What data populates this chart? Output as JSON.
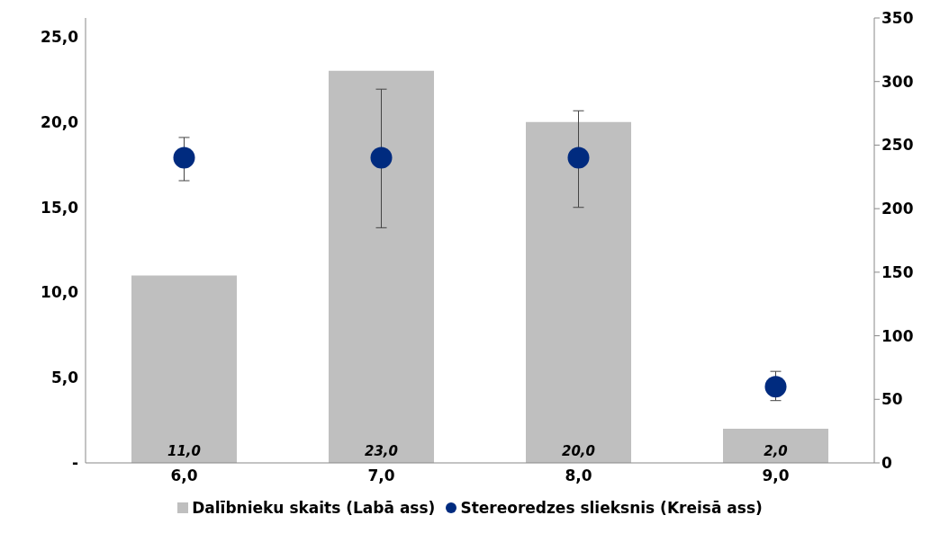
{
  "chart_data": {
    "type": "bar",
    "categories": [
      "6,0",
      "7,0",
      "8,0",
      "9,0"
    ],
    "series": [
      {
        "name": "Dalībnieku skaits (Labā ass)",
        "color": "#bfbfbf",
        "values": [
          11,
          23,
          20,
          2
        ],
        "value_labels": [
          "11,0",
          "23,0",
          "20,0",
          "2,0"
        ]
      },
      {
        "name": "Stereoredzes slieksnis (Kreisā ass)",
        "type": "scatter",
        "axis": "y2",
        "color": "#002b7f",
        "values": [
          240,
          240,
          240,
          60
        ],
        "errors": [
          [
            222,
            256
          ],
          [
            185,
            294
          ],
          [
            201,
            277
          ],
          [
            49,
            72
          ]
        ]
      }
    ],
    "ylim": [
      0,
      26.1
    ],
    "yticks": [
      {
        "value": 0,
        "label": "-"
      },
      {
        "value": 5,
        "label": "5,0"
      },
      {
        "value": 10,
        "label": "10,0"
      },
      {
        "value": 15,
        "label": "15,0"
      },
      {
        "value": 20,
        "label": "20,0"
      },
      {
        "value": 25,
        "label": "25,0"
      }
    ],
    "y2lim": [
      0,
      350
    ],
    "y2ticks": [
      0,
      50,
      100,
      150,
      200,
      250,
      300,
      350
    ],
    "legend": "bottom",
    "grid": false,
    "marker": "circle"
  }
}
